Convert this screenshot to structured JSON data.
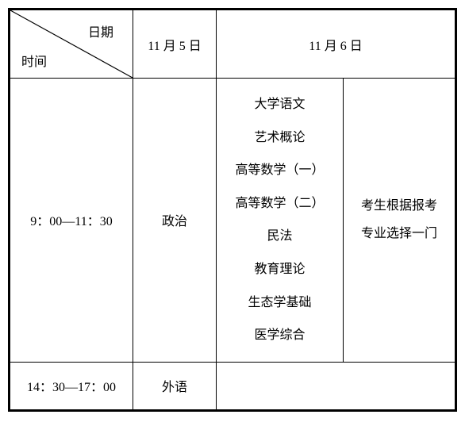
{
  "header": {
    "date_label": "日期",
    "time_label": "时间",
    "day1": "11 月 5 日",
    "day2": "11 月 6 日"
  },
  "rows": {
    "morning": {
      "time": "9：00—11：30",
      "day1_subject": "政治",
      "day2_subjects": [
        "大学语文",
        "艺术概论",
        "高等数学（一）",
        "高等数学（二）",
        "民法",
        "教育理论",
        "生态学基础",
        "医学综合"
      ],
      "note_line1": "考生根据报考",
      "note_line2": "专业选择一门"
    },
    "afternoon": {
      "time": "14：30—17：00",
      "day1_subject": "外语"
    }
  },
  "style": {
    "columns": [
      "155px",
      "105px",
      "160px",
      "auto"
    ],
    "border_color": "#000000",
    "background_color": "#ffffff",
    "text_color": "#000000",
    "font_size": 16
  }
}
